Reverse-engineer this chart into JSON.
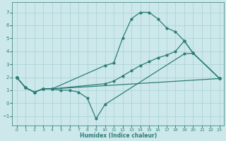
{
  "xlabel": "Humidex (Indice chaleur)",
  "xlim": [
    -0.5,
    23.5
  ],
  "ylim": [
    -1.7,
    7.8
  ],
  "xticks": [
    0,
    1,
    2,
    3,
    4,
    5,
    6,
    7,
    8,
    9,
    10,
    11,
    12,
    13,
    14,
    15,
    16,
    17,
    18,
    19,
    20,
    21,
    22,
    23
  ],
  "yticks": [
    -1,
    0,
    1,
    2,
    3,
    4,
    5,
    6,
    7
  ],
  "background_color": "#cce8ea",
  "grid_color": "#a8d0d4",
  "line_color": "#2d7d78",
  "lines": [
    {
      "x": [
        0,
        1,
        2,
        3,
        4,
        23
      ],
      "y": [
        2.0,
        1.2,
        0.85,
        1.1,
        1.1,
        1.9
      ]
    },
    {
      "x": [
        0,
        1,
        2,
        3,
        4,
        5,
        6,
        7,
        8,
        9,
        10,
        19,
        20,
        23
      ],
      "y": [
        2.0,
        1.2,
        0.85,
        1.1,
        1.1,
        1.0,
        1.0,
        0.85,
        0.4,
        -1.2,
        -0.1,
        3.8,
        3.85,
        1.9
      ]
    },
    {
      "x": [
        0,
        1,
        2,
        3,
        4,
        10,
        11,
        12,
        13,
        14,
        15,
        16,
        17,
        18,
        19,
        20,
        23
      ],
      "y": [
        2.0,
        1.2,
        0.85,
        1.1,
        1.1,
        2.9,
        3.1,
        5.0,
        6.5,
        7.0,
        7.0,
        6.5,
        5.8,
        5.5,
        4.8,
        3.85,
        1.9
      ]
    },
    {
      "x": [
        0,
        1,
        2,
        3,
        4,
        10,
        11,
        12,
        13,
        14,
        15,
        16,
        17,
        18,
        19,
        20,
        23
      ],
      "y": [
        2.0,
        1.2,
        0.85,
        1.1,
        1.1,
        1.5,
        1.7,
        2.1,
        2.5,
        2.9,
        3.2,
        3.5,
        3.7,
        4.0,
        4.8,
        3.85,
        1.9
      ]
    }
  ]
}
